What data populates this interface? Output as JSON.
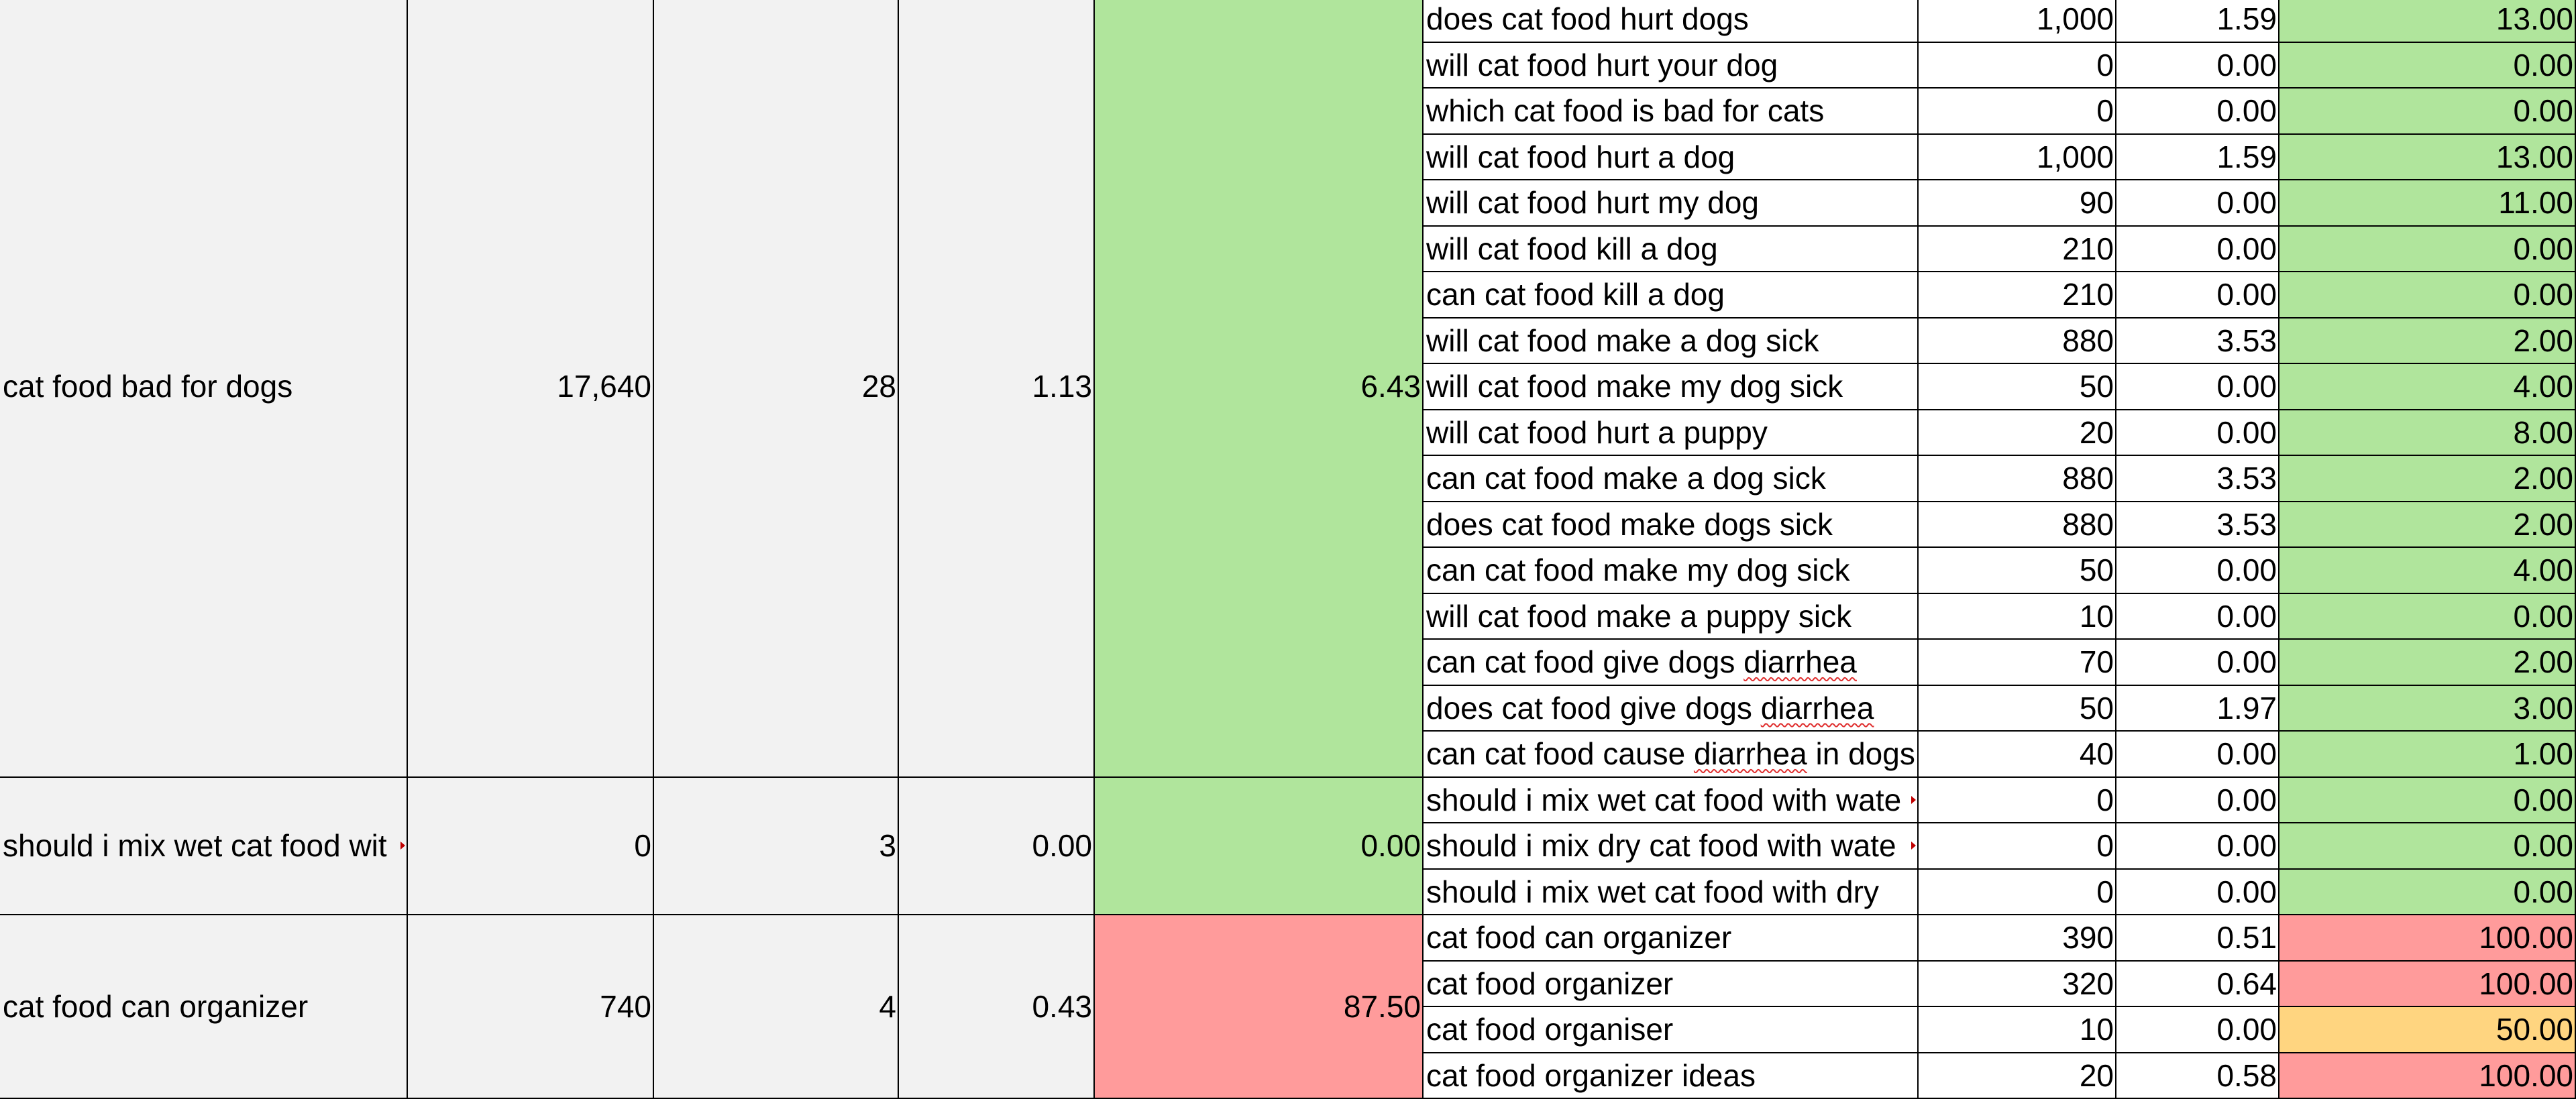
{
  "colors": {
    "group_cell": "#f2f2f2",
    "good": "#b0e59c",
    "bad": "#ff9b9b",
    "medium": "#ffd580",
    "gridline": "#000000",
    "spellcheck_underline": "#e03030"
  },
  "groups": [
    {
      "keyword": "cat food bad for dogs",
      "volume": "17,640",
      "count": "28",
      "cpc": "1.13",
      "score": "6.43",
      "score_color": "good",
      "rows": [
        {
          "keyword": "does cat food hurt dogs",
          "volume": "1,000",
          "cpc": "1.59",
          "score": "13.00",
          "score_color": "good"
        },
        {
          "keyword": "will cat food hurt your dog",
          "volume": "0",
          "cpc": "0.00",
          "score": "0.00",
          "score_color": "good"
        },
        {
          "keyword": "which cat food is bad for cats",
          "volume": "0",
          "cpc": "0.00",
          "score": "0.00",
          "score_color": "good"
        },
        {
          "keyword": "will cat food hurt a dog",
          "volume": "1,000",
          "cpc": "1.59",
          "score": "13.00",
          "score_color": "good"
        },
        {
          "keyword": "will cat food hurt my dog",
          "volume": "90",
          "cpc": "0.00",
          "score": "11.00",
          "score_color": "good"
        },
        {
          "keyword": "will cat food kill a dog",
          "volume": "210",
          "cpc": "0.00",
          "score": "0.00",
          "score_color": "good"
        },
        {
          "keyword": "can cat food kill a dog",
          "volume": "210",
          "cpc": "0.00",
          "score": "0.00",
          "score_color": "good"
        },
        {
          "keyword": "will cat food make a dog sick",
          "volume": "880",
          "cpc": "3.53",
          "score": "2.00",
          "score_color": "good"
        },
        {
          "keyword": "will cat food make my dog sick",
          "volume": "50",
          "cpc": "0.00",
          "score": "4.00",
          "score_color": "good"
        },
        {
          "keyword": "will cat food hurt a puppy",
          "volume": "20",
          "cpc": "0.00",
          "score": "8.00",
          "score_color": "good"
        },
        {
          "keyword": "can cat food make a dog sick",
          "volume": "880",
          "cpc": "3.53",
          "score": "2.00",
          "score_color": "good"
        },
        {
          "keyword": "does cat food make dogs sick",
          "volume": "880",
          "cpc": "3.53",
          "score": "2.00",
          "score_color": "good"
        },
        {
          "keyword": "can cat food make my dog sick",
          "volume": "50",
          "cpc": "0.00",
          "score": "4.00",
          "score_color": "good"
        },
        {
          "keyword": "will cat food make a puppy sick",
          "volume": "10",
          "cpc": "0.00",
          "score": "0.00",
          "score_color": "good"
        },
        {
          "keyword": "can cat food give dogs diarrhea",
          "volume": "70",
          "cpc": "0.00",
          "score": "2.00",
          "score_color": "good"
        },
        {
          "keyword": "does cat food give dogs diarrhea",
          "volume": "50",
          "cpc": "1.97",
          "score": "3.00",
          "score_color": "good"
        },
        {
          "keyword": "can cat food cause diarrhea in dogs",
          "volume": "40",
          "cpc": "0.00",
          "score": "1.00",
          "score_color": "good"
        }
      ]
    },
    {
      "keyword": "should i mix wet cat food wit",
      "volume": "0",
      "count": "3",
      "cpc": "0.00",
      "score": "0.00",
      "score_color": "good",
      "rows": [
        {
          "keyword": "should i mix wet cat food with wate",
          "volume": "0",
          "cpc": "0.00",
          "score": "0.00",
          "score_color": "good"
        },
        {
          "keyword": "should i mix dry cat food with wate",
          "volume": "0",
          "cpc": "0.00",
          "score": "0.00",
          "score_color": "good"
        },
        {
          "keyword": "should i mix wet cat food with dry",
          "volume": "0",
          "cpc": "0.00",
          "score": "0.00",
          "score_color": "good"
        }
      ]
    },
    {
      "keyword": "cat food can organizer",
      "volume": "740",
      "count": "4",
      "cpc": "0.43",
      "score": "87.50",
      "score_color": "bad",
      "rows": [
        {
          "keyword": "cat food can organizer",
          "volume": "390",
          "cpc": "0.51",
          "score": "100.00",
          "score_color": "bad"
        },
        {
          "keyword": "cat food organizer",
          "volume": "320",
          "cpc": "0.64",
          "score": "100.00",
          "score_color": "bad"
        },
        {
          "keyword": "cat food organiser",
          "volume": "10",
          "cpc": "0.00",
          "score": "50.00",
          "score_color": "medium"
        },
        {
          "keyword": "cat food organizer ideas",
          "volume": "20",
          "cpc": "0.58",
          "score": "100.00",
          "score_color": "bad"
        }
      ]
    }
  ]
}
